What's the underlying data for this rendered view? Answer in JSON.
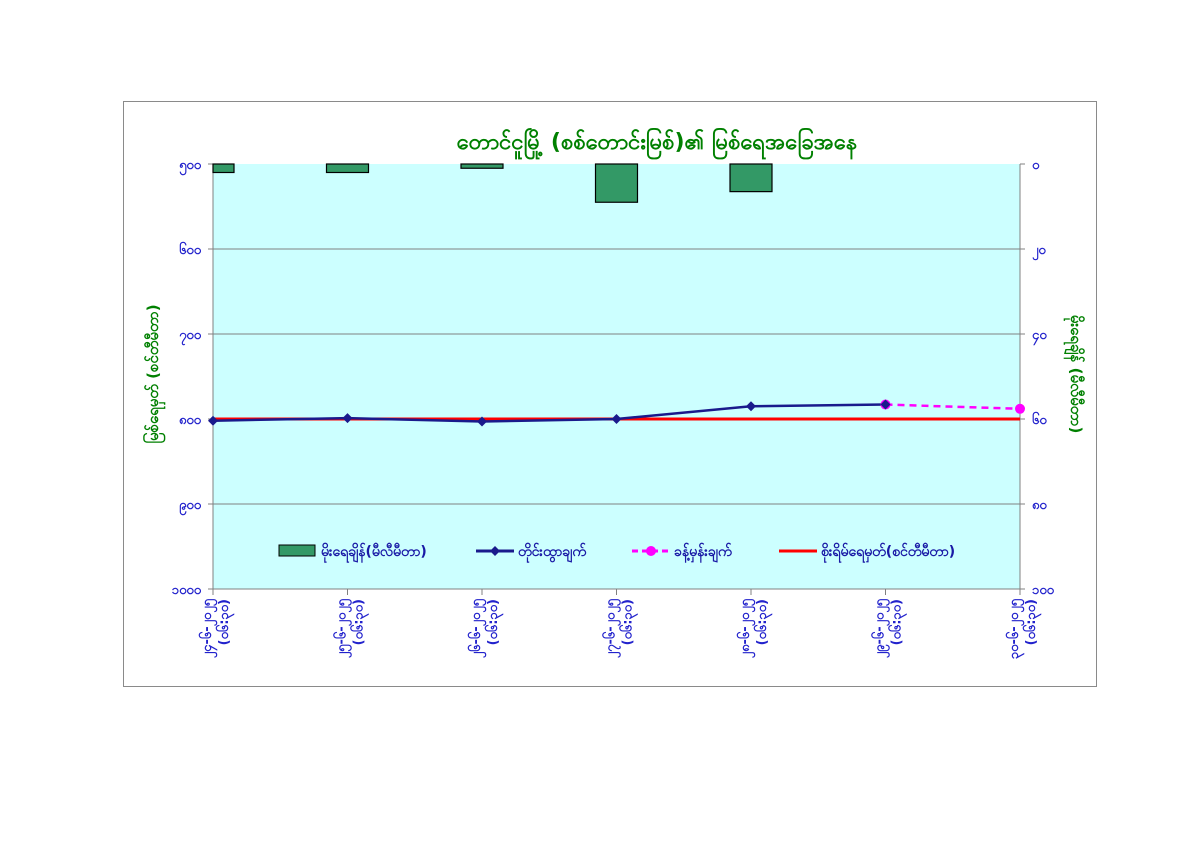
{
  "chart_data": {
    "type": "bar+line",
    "title": "တောင်ငူမြို့ (စစ်တောင်းမြစ်)၏ မြစ်ရေအခြေအနေ",
    "ylabel_left": "မြစ်ရေမှတ် (စင်တီမီတာ)",
    "ylabel_right": "မိုးရေချိန် (မီလီမီတာ)",
    "categories": [
      [
        "၂၄-၆-၂၀၂၅",
        "(၀၆:၃၀)"
      ],
      [
        "၂၅-၆-၂၀၂၅",
        "(၀၆:၃၀)"
      ],
      [
        "၂၆-၆-၂၀၂၅",
        "(၀၆:၃၀)"
      ],
      [
        "၂၇-၆-၂၀၂၅",
        "(၀၆:၃၀)"
      ],
      [
        "၂၈-၆-၂၀၂၅",
        "(၀၆:၃၀)"
      ],
      [
        "၂၉-၆-၂၀၂၅",
        "(၀၆:၃၀)"
      ],
      [
        "၃၀-၆-၂၀၂၅",
        "(၀၆:၃၀)"
      ]
    ],
    "left_axis": {
      "min": 500,
      "max": 1000,
      "step": 100,
      "reversed": true,
      "tick_labels": [
        "၅၀၀",
        "၆၀၀",
        "၇၀၀",
        "၈၀၀",
        "၉၀၀",
        "၁၀၀၀"
      ]
    },
    "right_axis": {
      "min": 0,
      "max": 100,
      "step": 20,
      "reversed": true,
      "tick_labels": [
        "၀",
        "၂၀",
        "၄၀",
        "၆၀",
        "၈၀",
        "၁၀၀"
      ]
    },
    "grid": true,
    "legend_position": "bottom-inside",
    "series": [
      {
        "name": "မိုးရေချိန်(မီလီမီတာ)",
        "type": "bar",
        "axis": "right",
        "color": "#339966",
        "values": [
          2,
          2,
          1,
          9,
          6.5,
          0,
          0
        ]
      },
      {
        "name": "တိုင်းထွာချက်",
        "type": "line",
        "axis": "left",
        "color": "#1a1a8c",
        "marker": "diamond",
        "values": [
          802,
          799,
          803,
          800,
          785,
          783,
          null
        ]
      },
      {
        "name": "ခန့်မှန်းချက်",
        "type": "line",
        "axis": "left",
        "color": "#ff00ff",
        "marker": "circle",
        "dash": true,
        "values": [
          null,
          null,
          null,
          null,
          null,
          783,
          788
        ]
      },
      {
        "name": "စိုးရိမ်ရေမှတ်(စင်တီမီတာ)",
        "type": "line",
        "axis": "left",
        "color": "#ff0000",
        "values": [
          800,
          800,
          800,
          800,
          800,
          800,
          800
        ]
      }
    ]
  }
}
